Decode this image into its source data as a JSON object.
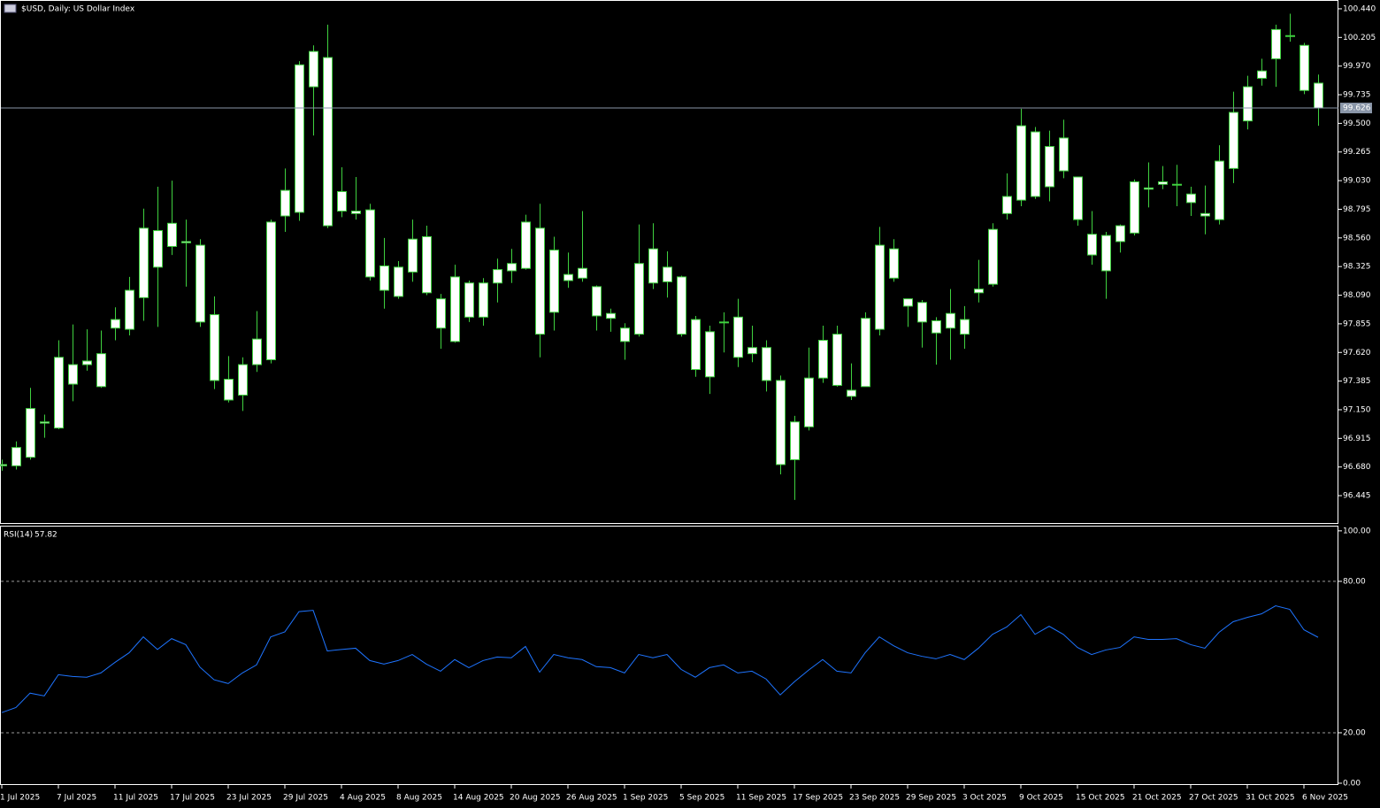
{
  "chart_data": [
    {
      "type": "candlestick",
      "title": "$USD, Daily:  US Dollar Index",
      "x": [
        "1 Jul 2025",
        null,
        null,
        null,
        "7 Jul 2025",
        null,
        null,
        null,
        "11 Jul 2025",
        null,
        null,
        null,
        "17 Jul 2025",
        null,
        null,
        null,
        "23 Jul 2025",
        null,
        null,
        null,
        "29 Jul 2025",
        null,
        null,
        null,
        "4 Aug 2025",
        null,
        null,
        null,
        "8 Aug 2025",
        null,
        null,
        null,
        "14 Aug 2025",
        null,
        null,
        null,
        "20 Aug 2025",
        null,
        null,
        null,
        "26 Aug 2025",
        null,
        null,
        null,
        "1 Sep 2025",
        null,
        null,
        null,
        "5 Sep 2025",
        null,
        null,
        null,
        "11 Sep 2025",
        null,
        null,
        null,
        "17 Sep 2025",
        null,
        null,
        null,
        "23 Sep 2025",
        null,
        null,
        null,
        "29 Sep 2025",
        null,
        null,
        null,
        "3 Oct 2025",
        null,
        null,
        null,
        "9 Oct 2025",
        null,
        null,
        null,
        "15 Oct 2025",
        null,
        null,
        null,
        "21 Oct 2025",
        null,
        null,
        null,
        "27 Oct 2025",
        null,
        null,
        null,
        "31 Oct 2025",
        null,
        null,
        null,
        "6 Nov 2025",
        null
      ],
      "open": [
        96.69,
        96.69,
        96.76,
        97.05,
        97.0,
        97.36,
        97.52,
        97.34,
        97.82,
        97.81,
        98.07,
        98.62,
        98.49,
        98.53,
        98.5,
        97.93,
        97.4,
        97.27,
        97.52,
        97.56,
        98.74,
        98.77,
        99.8,
        100.04,
        98.94,
        98.78,
        98.79,
        98.33,
        98.08,
        98.28,
        98.57,
        98.06,
        97.71,
        98.19,
        97.91,
        98.19,
        98.35,
        98.31,
        98.64,
        97.95,
        98.26,
        98.31,
        98.16,
        97.94,
        97.82,
        97.77,
        98.47,
        98.2,
        98.24,
        97.89,
        97.42,
        97.87,
        97.91,
        97.66,
        97.66,
        97.39,
        96.74,
        97.01,
        97.41,
        97.77,
        97.31,
        97.34,
        97.81,
        98.47,
        98.06,
        98.03,
        97.88,
        97.82,
        97.77,
        98.11,
        98.18,
        98.76,
        98.87,
        99.43,
        98.98,
        99.38,
        99.06,
        98.59,
        98.29,
        98.53,
        98.6,
        98.96,
        99.0,
        99.0,
        98.92,
        98.74,
        98.71,
        99.13,
        99.52,
        99.87,
        100.03,
        100.22,
        100.14,
        99.83
      ],
      "high": [
        96.74,
        96.89,
        97.33,
        97.11,
        97.72,
        97.85,
        97.81,
        97.8,
        97.99,
        98.24,
        98.8,
        98.98,
        99.03,
        98.71,
        98.55,
        98.08,
        97.59,
        97.58,
        97.96,
        98.71,
        99.13,
        100.01,
        100.14,
        100.31,
        99.14,
        99.06,
        98.84,
        98.56,
        98.37,
        98.71,
        98.66,
        98.1,
        98.34,
        98.21,
        98.23,
        98.39,
        98.47,
        98.75,
        98.84,
        98.57,
        98.44,
        98.78,
        98.17,
        97.98,
        97.86,
        98.67,
        98.68,
        98.45,
        98.25,
        97.92,
        97.84,
        97.95,
        98.06,
        97.84,
        97.72,
        97.43,
        97.1,
        97.66,
        97.84,
        97.84,
        97.53,
        97.95,
        98.65,
        98.55,
        98.06,
        98.05,
        97.91,
        98.14,
        98.0,
        98.38,
        98.68,
        99.09,
        99.62,
        99.47,
        99.44,
        99.53,
        99.06,
        98.78,
        98.61,
        98.67,
        99.04,
        99.18,
        99.15,
        99.16,
        98.98,
        98.99,
        99.32,
        99.76,
        99.89,
        100.03,
        100.31,
        100.4,
        100.16,
        99.9
      ],
      "low": [
        96.65,
        96.66,
        96.74,
        96.92,
        96.99,
        97.22,
        97.47,
        97.33,
        97.72,
        97.76,
        97.88,
        97.83,
        98.42,
        98.16,
        97.83,
        97.32,
        97.21,
        97.14,
        97.46,
        97.53,
        98.61,
        98.7,
        99.4,
        98.64,
        98.73,
        98.71,
        98.21,
        97.98,
        98.06,
        98.2,
        98.09,
        97.65,
        97.7,
        97.87,
        97.84,
        98.03,
        98.19,
        98.3,
        97.58,
        97.8,
        98.15,
        98.2,
        97.8,
        97.79,
        97.56,
        97.75,
        98.14,
        98.07,
        97.75,
        97.42,
        97.28,
        97.62,
        97.5,
        97.54,
        97.3,
        96.62,
        96.41,
        96.98,
        97.37,
        97.34,
        97.23,
        97.34,
        97.76,
        98.2,
        97.83,
        97.66,
        97.52,
        97.56,
        97.65,
        98.03,
        98.16,
        98.71,
        98.82,
        98.88,
        98.86,
        99.05,
        98.66,
        98.34,
        98.06,
        98.44,
        98.58,
        98.81,
        98.96,
        98.82,
        98.74,
        98.59,
        98.67,
        99.01,
        99.45,
        99.81,
        99.8,
        100.17,
        99.74,
        99.48
      ],
      "close": [
        96.7,
        96.84,
        97.16,
        97.04,
        97.58,
        97.52,
        97.55,
        97.61,
        97.89,
        98.13,
        98.64,
        98.32,
        98.68,
        98.52,
        97.87,
        97.39,
        97.23,
        97.52,
        97.73,
        98.69,
        98.95,
        99.98,
        100.09,
        98.66,
        98.78,
        98.76,
        98.24,
        98.13,
        98.32,
        98.55,
        98.11,
        97.82,
        98.24,
        97.91,
        98.19,
        98.3,
        98.29,
        98.69,
        97.77,
        98.46,
        98.21,
        98.23,
        97.92,
        97.9,
        97.71,
        98.35,
        98.19,
        98.32,
        97.77,
        97.48,
        97.79,
        97.87,
        97.58,
        97.61,
        97.39,
        96.7,
        97.05,
        97.41,
        97.72,
        97.35,
        97.26,
        97.9,
        98.5,
        98.23,
        98.0,
        97.87,
        97.78,
        97.94,
        97.89,
        98.14,
        98.63,
        98.9,
        99.48,
        98.9,
        99.31,
        99.11,
        98.71,
        98.42,
        98.58,
        98.66,
        99.02,
        98.97,
        99.02,
        99.0,
        98.85,
        98.76,
        99.19,
        99.59,
        99.8,
        99.93,
        100.27,
        100.22,
        99.77,
        99.626
      ],
      "last_price": 99.626,
      "colors": {
        "wick": "#3fd13f",
        "body": "#ffffff",
        "background": "#000000",
        "axis": "#ffffff",
        "price_line": "#8a96a8"
      },
      "ylim": [
        96.213,
        100.505
      ],
      "yticks": [
        {
          "value": 100.44,
          "label": "100.440"
        },
        {
          "value": 100.205,
          "label": "100.205"
        },
        {
          "value": 99.97,
          "label": "99.970"
        },
        {
          "value": 99.735,
          "label": "99.735"
        },
        {
          "value": 99.5,
          "label": "99.500"
        },
        {
          "value": 99.265,
          "label": "99.265"
        },
        {
          "value": 99.03,
          "label": "99.030"
        },
        {
          "value": 98.795,
          "label": "98.795"
        },
        {
          "value": 98.56,
          "label": "98.560"
        },
        {
          "value": 98.325,
          "label": "98.325"
        },
        {
          "value": 98.09,
          "label": "98.090"
        },
        {
          "value": 97.855,
          "label": "97.855"
        },
        {
          "value": 97.62,
          "label": "97.620"
        },
        {
          "value": 97.385,
          "label": "97.385"
        },
        {
          "value": 97.15,
          "label": "97.150"
        },
        {
          "value": 96.915,
          "label": "96.915"
        },
        {
          "value": 96.68,
          "label": "96.680"
        },
        {
          "value": 96.445,
          "label": "96.445"
        }
      ]
    },
    {
      "type": "line",
      "title": "RSI(14)",
      "series": [
        {
          "name": "RSI(14)",
          "color": "#1e74ff",
          "values": [
            28.0,
            30.0,
            35.7,
            34.6,
            43.0,
            42.3,
            42.0,
            43.7,
            47.9,
            51.7,
            58.0,
            53.0,
            57.3,
            54.9,
            46.0,
            41.0,
            39.5,
            43.7,
            46.9,
            58.0,
            60.0,
            68.0,
            68.5,
            52.4,
            53.0,
            53.5,
            48.6,
            47.2,
            48.6,
            51.0,
            47.2,
            44.4,
            49.0,
            45.8,
            48.6,
            50.0,
            49.7,
            54.2,
            44.0,
            51.0,
            49.7,
            49.0,
            46.2,
            45.8,
            43.7,
            51.0,
            49.7,
            51.0,
            45.1,
            42.0,
            45.8,
            46.9,
            43.7,
            44.4,
            41.3,
            35.0,
            40.2,
            44.8,
            49.0,
            44.4,
            43.7,
            51.7,
            58.0,
            54.5,
            51.7,
            50.3,
            49.3,
            51.0,
            49.0,
            53.5,
            59.0,
            61.9,
            66.8,
            59.0,
            62.2,
            59.0,
            53.8,
            51.0,
            52.8,
            53.8,
            58.0,
            57.0,
            57.0,
            57.3,
            54.9,
            53.5,
            59.8,
            64.0,
            65.7,
            67.1,
            70.3,
            68.9,
            60.8,
            57.82
          ]
        }
      ],
      "ylim": [
        -0.7,
        101.7
      ],
      "yticks": [
        {
          "value": 100,
          "label": "100.00"
        },
        {
          "value": 80,
          "label": "80.00"
        },
        {
          "value": 20,
          "label": "20.00"
        },
        {
          "value": 0,
          "label": "0.00"
        }
      ],
      "levels": [
        80,
        20
      ]
    }
  ]
}
